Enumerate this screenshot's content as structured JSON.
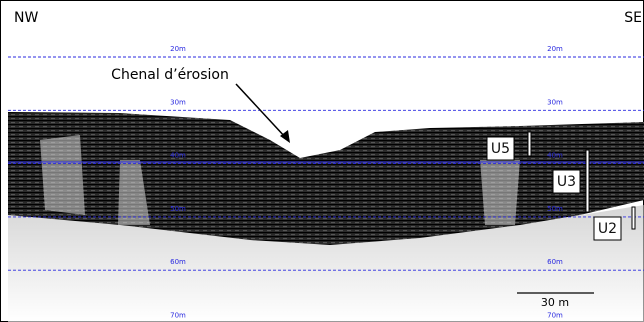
{
  "header": {
    "left": "NW",
    "right": "SE"
  },
  "annotation": "Chenal d’érosion",
  "depth_labels": [
    "20m",
    "30m",
    "40m",
    "50m",
    "60m",
    "70m"
  ],
  "units": [
    "U5",
    "U3",
    "U2"
  ],
  "scale_bar": "30 m"
}
